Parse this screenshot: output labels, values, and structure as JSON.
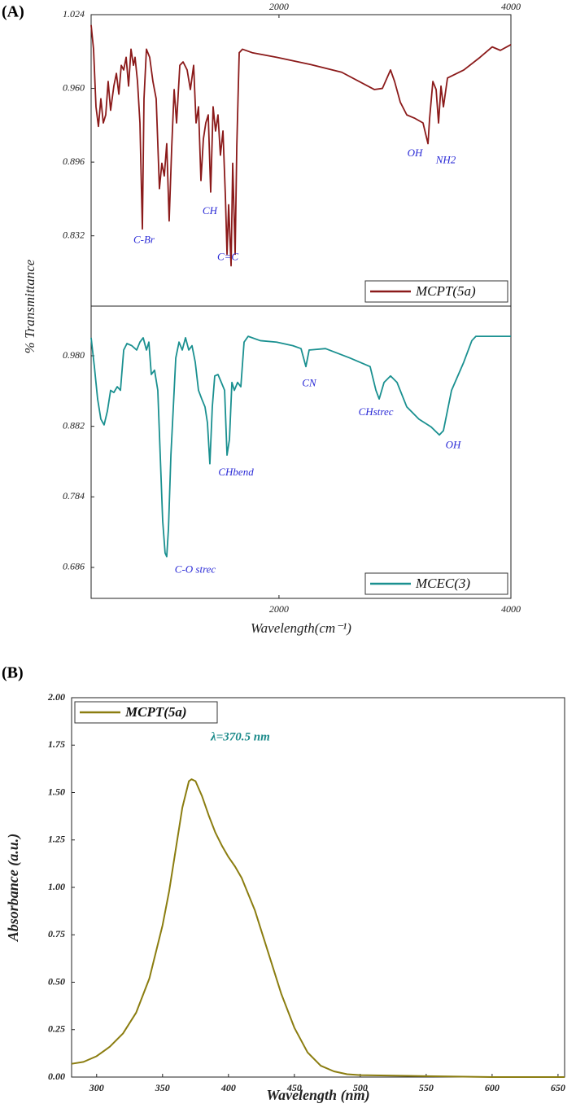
{
  "panel_labels": [
    "(A)",
    "(B)"
  ],
  "chart_data": [
    {
      "type": "line",
      "ylabel": "% Transmittance",
      "xtick_position": "top",
      "legend": "lower right",
      "annotation_color": "#2a2ad6",
      "xlim": [
        380,
        4000
      ],
      "xticks": [
        2000,
        4000
      ],
      "ylim": [
        0.771,
        1.024
      ],
      "yticks": [
        1.024,
        {
          "value": 0.96,
          "label": "0.960"
        },
        0.896,
        0.832
      ],
      "x": [
        380,
        401,
        422,
        443,
        464,
        485,
        506,
        527,
        548,
        576,
        598,
        619,
        640,
        661,
        682,
        703,
        724,
        745,
        759,
        780,
        801,
        822,
        836,
        857,
        885,
        913,
        941,
        969,
        990,
        1011,
        1032,
        1053,
        1075,
        1096,
        1117,
        1145,
        1173,
        1208,
        1236,
        1264,
        1285,
        1306,
        1327,
        1348,
        1369,
        1390,
        1411,
        1432,
        1453,
        1474,
        1495,
        1517,
        1538,
        1552,
        1566,
        1587,
        1601,
        1622,
        1636,
        1657,
        1685,
        1769,
        1980,
        2260,
        2541,
        2822,
        2892,
        2962,
        2997,
        3046,
        3102,
        3172,
        3242,
        3285,
        3299,
        3327,
        3355,
        3376,
        3397,
        3418,
        3453,
        3594,
        3734,
        3839,
        3909,
        4000
      ],
      "series": [
        {
          "name": "MCPT(5a)",
          "color": "#8b1a1a",
          "values": [
            1.015,
            0.994,
            0.944,
            0.927,
            0.951,
            0.93,
            0.937,
            0.966,
            0.941,
            0.962,
            0.973,
            0.955,
            0.98,
            0.976,
            0.987,
            0.962,
            0.994,
            0.98,
            0.987,
            0.966,
            0.93,
            0.838,
            0.951,
            0.994,
            0.987,
            0.966,
            0.951,
            0.873,
            0.895,
            0.884,
            0.912,
            0.845,
            0.909,
            0.959,
            0.93,
            0.98,
            0.983,
            0.976,
            0.959,
            0.98,
            0.93,
            0.944,
            0.88,
            0.916,
            0.93,
            0.937,
            0.87,
            0.944,
            0.923,
            0.937,
            0.902,
            0.923,
            0.866,
            0.816,
            0.859,
            0.806,
            0.895,
            0.816,
            0.909,
            0.991,
            0.994,
            0.991,
            0.987,
            0.981,
            0.974,
            0.959,
            0.96,
            0.976,
            0.966,
            0.948,
            0.937,
            0.934,
            0.93,
            0.912,
            0.934,
            0.966,
            0.959,
            0.93,
            0.962,
            0.944,
            0.969,
            0.976,
            0.987,
            0.996,
            0.993,
            0.998
          ]
        }
      ],
      "annotations": [
        {
          "text": "C-Br",
          "x": 836,
          "y": 0.828
        },
        {
          "text": "CH",
          "x": 1404,
          "y": 0.853
        },
        {
          "text": "C=C",
          "x": 1559,
          "y": 0.813
        },
        {
          "text": "OH",
          "x": 3172,
          "y": 0.903
        },
        {
          "text": "NH2",
          "x": 3439,
          "y": 0.897
        }
      ]
    },
    {
      "type": "line",
      "xlabel": "Wavelength(cm⁻¹)",
      "xtick_position": "bottom",
      "legend": "lower right",
      "annotation_color": "#2a2ad6",
      "xlim": [
        380,
        4000
      ],
      "xticks": [
        2000,
        4000
      ],
      "ylim": [
        0.643,
        1.049
      ],
      "yticks": [
        {
          "value": 0.98,
          "label": "0.980"
        },
        0.882,
        0.784,
        0.686
      ],
      "x": [
        380,
        408,
        436,
        464,
        492,
        520,
        548,
        576,
        605,
        633,
        661,
        689,
        731,
        773,
        801,
        829,
        857,
        878,
        899,
        927,
        955,
        976,
        997,
        1018,
        1032,
        1047,
        1068,
        1089,
        1110,
        1138,
        1166,
        1194,
        1222,
        1250,
        1278,
        1306,
        1334,
        1362,
        1383,
        1404,
        1425,
        1446,
        1474,
        1503,
        1531,
        1552,
        1573,
        1594,
        1615,
        1643,
        1671,
        1699,
        1734,
        1839,
        1980,
        2120,
        2190,
        2232,
        2260,
        2401,
        2611,
        2786,
        2836,
        2864,
        2906,
        2962,
        3018,
        3102,
        3207,
        3313,
        3383,
        3418,
        3488,
        3593,
        3663,
        3698,
        3804,
        4000
      ],
      "series": [
        {
          "name": "MCEC(3)",
          "color": "#1a9090",
          "values": [
            1.005,
            0.965,
            0.92,
            0.892,
            0.884,
            0.903,
            0.932,
            0.929,
            0.937,
            0.932,
            0.988,
            0.997,
            0.994,
            0.988,
            0.999,
            1.005,
            0.988,
            0.999,
            0.954,
            0.96,
            0.932,
            0.842,
            0.751,
            0.706,
            0.701,
            0.74,
            0.842,
            0.909,
            0.977,
            0.999,
            0.988,
            1.005,
            0.988,
            0.994,
            0.971,
            0.932,
            0.92,
            0.909,
            0.887,
            0.83,
            0.909,
            0.952,
            0.954,
            0.943,
            0.932,
            0.842,
            0.864,
            0.943,
            0.932,
            0.943,
            0.937,
            0.999,
            1.007,
            1.001,
            0.999,
            0.994,
            0.99,
            0.965,
            0.988,
            0.99,
            0.977,
            0.965,
            0.932,
            0.92,
            0.943,
            0.952,
            0.943,
            0.909,
            0.892,
            0.881,
            0.87,
            0.876,
            0.932,
            0.971,
            1.001,
            1.007,
            1.007,
            1.007
          ]
        }
      ],
      "annotations": [
        {
          "text": "CN",
          "x": 2260,
          "y": 0.941
        },
        {
          "text": "CHstrec",
          "x": 2836,
          "y": 0.901
        },
        {
          "text": "OH",
          "x": 3502,
          "y": 0.855
        },
        {
          "text": "CHbend",
          "x": 1629,
          "y": 0.817
        },
        {
          "text": "C-O strec",
          "x": 1278,
          "y": 0.682
        }
      ]
    },
    {
      "type": "line",
      "xlabel": "Wavelength (nm)",
      "ylabel": "Absorbance (a.u.)",
      "xtick_position": "bottom",
      "legend": "upper left",
      "annotation_color": "#1a8a8a",
      "xlim": [
        281,
        655
      ],
      "xticks": [
        300,
        350,
        400,
        450,
        500,
        550,
        600,
        650
      ],
      "ylim": [
        0,
        2
      ],
      "yticks": [
        {
          "value": 2,
          "label": "2.00"
        },
        {
          "value": 1.75,
          "label": "1.75"
        },
        {
          "value": 1.5,
          "label": "1.50"
        },
        {
          "value": 1.25,
          "label": "1.25"
        },
        {
          "value": 1,
          "label": "1.00"
        },
        {
          "value": 0.75,
          "label": "0.75"
        },
        {
          "value": 0.5,
          "label": "0.50"
        },
        {
          "value": 0.25,
          "label": "0.25"
        },
        {
          "value": 0,
          "label": "0.00"
        }
      ],
      "x": [
        281,
        290,
        300,
        310,
        320,
        330,
        340,
        350,
        355,
        360,
        365,
        370,
        372,
        375,
        380,
        385,
        390,
        395,
        400,
        405,
        410,
        420,
        430,
        440,
        450,
        460,
        470,
        480,
        490,
        500,
        550,
        600,
        655
      ],
      "series": [
        {
          "name": "MCPT(5a)",
          "color": "#8b7d10",
          "values": [
            0.07,
            0.08,
            0.11,
            0.16,
            0.23,
            0.34,
            0.52,
            0.8,
            0.98,
            1.2,
            1.42,
            1.56,
            1.57,
            1.56,
            1.48,
            1.38,
            1.29,
            1.22,
            1.16,
            1.11,
            1.05,
            0.88,
            0.66,
            0.44,
            0.26,
            0.13,
            0.06,
            0.03,
            0.015,
            0.01,
            0.005,
            0,
            0
          ]
        }
      ],
      "annotations": [
        {
          "text": "λ=370.5 nm",
          "x": 409,
          "y": 1.79
        }
      ]
    }
  ]
}
